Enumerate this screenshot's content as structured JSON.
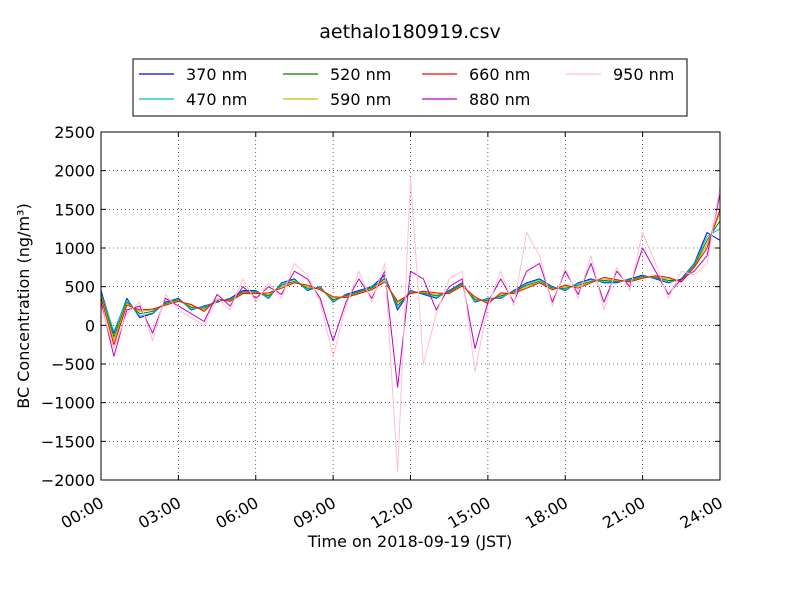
{
  "chart_data": {
    "type": "line",
    "title": "aethalo180919.csv",
    "xlabel": "Time on 2018-09-19 (JST)",
    "ylabel": "BC Concentration (ng/m³)",
    "xlim": [
      "00:00",
      "24:00"
    ],
    "ylim": [
      -2000,
      2500
    ],
    "grid": true,
    "legend_position": "top-center",
    "x_ticks": [
      "00:00",
      "03:00",
      "06:00",
      "09:00",
      "12:00",
      "15:00",
      "18:00",
      "21:00",
      "24:00"
    ],
    "y_ticks": [
      -2000,
      -1500,
      -1000,
      -500,
      0,
      500,
      1000,
      1500,
      2000,
      2500
    ],
    "x": [
      "00:00",
      "00:30",
      "01:00",
      "01:30",
      "02:00",
      "02:30",
      "03:00",
      "03:30",
      "04:00",
      "04:30",
      "05:00",
      "05:30",
      "06:00",
      "06:30",
      "07:00",
      "07:30",
      "08:00",
      "08:30",
      "09:00",
      "09:30",
      "10:00",
      "10:30",
      "11:00",
      "11:30",
      "12:00",
      "12:30",
      "13:00",
      "13:30",
      "14:00",
      "14:30",
      "15:00",
      "15:30",
      "16:00",
      "16:30",
      "17:00",
      "17:30",
      "18:00",
      "18:30",
      "19:00",
      "19:30",
      "20:00",
      "20:30",
      "21:00",
      "21:30",
      "22:00",
      "22:30",
      "23:00",
      "23:30",
      "24:00"
    ],
    "series": [
      {
        "name": "370 nm",
        "color": "#0000ff",
        "values": [
          450,
          -100,
          350,
          100,
          150,
          300,
          350,
          200,
          250,
          300,
          350,
          450,
          450,
          350,
          550,
          600,
          450,
          500,
          300,
          400,
          450,
          500,
          650,
          200,
          450,
          400,
          350,
          450,
          550,
          300,
          350,
          350,
          450,
          550,
          600,
          500,
          450,
          550,
          600,
          550,
          550,
          600,
          650,
          600,
          550,
          600,
          800,
          1200,
          1100
        ]
      },
      {
        "name": "470 nm",
        "color": "#00bfbf",
        "values": [
          420,
          -80,
          330,
          120,
          160,
          290,
          340,
          210,
          240,
          310,
          340,
          440,
          440,
          360,
          540,
          590,
          460,
          490,
          310,
          390,
          440,
          490,
          620,
          230,
          440,
          410,
          360,
          440,
          540,
          310,
          340,
          360,
          440,
          540,
          590,
          490,
          460,
          540,
          590,
          560,
          560,
          590,
          640,
          610,
          560,
          590,
          790,
          1150,
          1250
        ]
      },
      {
        "name": "520 nm",
        "color": "#008000",
        "values": [
          400,
          -150,
          300,
          150,
          180,
          280,
          330,
          230,
          220,
          320,
          330,
          430,
          430,
          380,
          520,
          570,
          480,
          480,
          330,
          380,
          430,
          480,
          600,
          260,
          430,
          420,
          380,
          430,
          530,
          330,
          320,
          380,
          430,
          520,
          570,
          480,
          480,
          520,
          570,
          580,
          570,
          580,
          630,
          620,
          580,
          580,
          770,
          1100,
          1350
        ]
      },
      {
        "name": "590 nm",
        "color": "#bfbf00",
        "values": [
          380,
          -200,
          280,
          180,
          200,
          270,
          320,
          250,
          200,
          330,
          320,
          420,
          420,
          400,
          500,
          560,
          500,
          470,
          350,
          370,
          420,
          470,
          580,
          290,
          420,
          430,
          400,
          420,
          520,
          350,
          300,
          400,
          420,
          500,
          560,
          470,
          500,
          500,
          560,
          600,
          580,
          570,
          620,
          630,
          600,
          570,
          760,
          1050,
          1450
        ]
      },
      {
        "name": "660 nm",
        "color": "#ff0000",
        "values": [
          360,
          -250,
          260,
          200,
          210,
          260,
          310,
          270,
          180,
          340,
          310,
          410,
          410,
          420,
          480,
          550,
          520,
          460,
          370,
          360,
          410,
          460,
          560,
          310,
          410,
          440,
          420,
          410,
          510,
          370,
          280,
          420,
          410,
          480,
          550,
          460,
          520,
          480,
          550,
          620,
          590,
          560,
          610,
          640,
          620,
          560,
          750,
          1000,
          1500
        ]
      },
      {
        "name": "880 nm",
        "color": "#bf00bf",
        "values": [
          300,
          -400,
          200,
          250,
          -100,
          350,
          250,
          150,
          50,
          400,
          250,
          500,
          350,
          500,
          400,
          700,
          600,
          350,
          -200,
          300,
          600,
          350,
          700,
          -800,
          700,
          600,
          200,
          500,
          600,
          -300,
          300,
          600,
          300,
          700,
          800,
          300,
          700,
          400,
          800,
          300,
          700,
          500,
          1000,
          700,
          400,
          600,
          700,
          900,
          1700
        ]
      },
      {
        "name": "950 nm",
        "color": "#ffc0cb",
        "values": [
          250,
          -300,
          150,
          300,
          -200,
          400,
          200,
          100,
          0,
          350,
          200,
          600,
          300,
          550,
          350,
          800,
          650,
          300,
          -400,
          250,
          700,
          300,
          800,
          -1900,
          1900,
          -500,
          150,
          600,
          700,
          -600,
          250,
          700,
          250,
          1200,
          900,
          250,
          750,
          350,
          900,
          200,
          750,
          450,
          1200,
          800,
          350,
          700,
          650,
          800,
          1800
        ]
      }
    ]
  }
}
